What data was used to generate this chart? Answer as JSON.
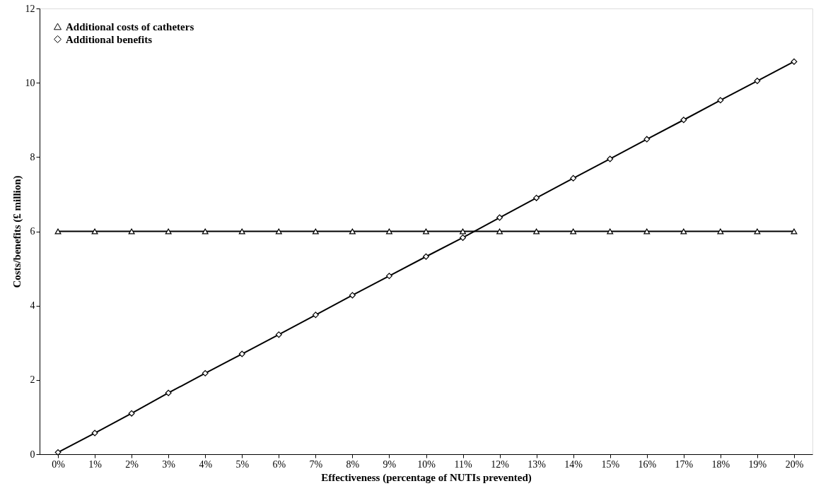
{
  "chart_data": {
    "type": "line",
    "xlabel": "Effectiveness (percentage of NUTIs prevented)",
    "ylabel": "Costs/benefits (£ million)",
    "categories": [
      "0%",
      "1%",
      "2%",
      "3%",
      "4%",
      "5%",
      "6%",
      "7%",
      "8%",
      "9%",
      "10%",
      "11%",
      "12%",
      "13%",
      "14%",
      "15%",
      "16%",
      "17%",
      "18%",
      "19%",
      "20%"
    ],
    "series": [
      {
        "name": "Additional costs of catheters",
        "color": "#000000",
        "marker": "triangle",
        "values": [
          6,
          6,
          6,
          6,
          6,
          6,
          6,
          6,
          6,
          6,
          6,
          6,
          6,
          6,
          6,
          6,
          6,
          6,
          6,
          6,
          6
        ]
      },
      {
        "name": "Additional benefits",
        "color": "#000000",
        "marker": "diamond",
        "values": [
          0.05,
          0.57,
          1.1,
          1.65,
          2.18,
          2.7,
          3.22,
          3.75,
          4.28,
          4.8,
          5.32,
          5.83,
          6.37,
          6.9,
          7.43,
          7.95,
          8.48,
          9.0,
          9.53,
          10.05,
          10.57
        ]
      }
    ],
    "ylim": [
      0,
      12
    ],
    "yticks": [
      0,
      2,
      4,
      6,
      8,
      10,
      12
    ],
    "grid": false,
    "legend": "top left",
    "line_style": "solid"
  }
}
